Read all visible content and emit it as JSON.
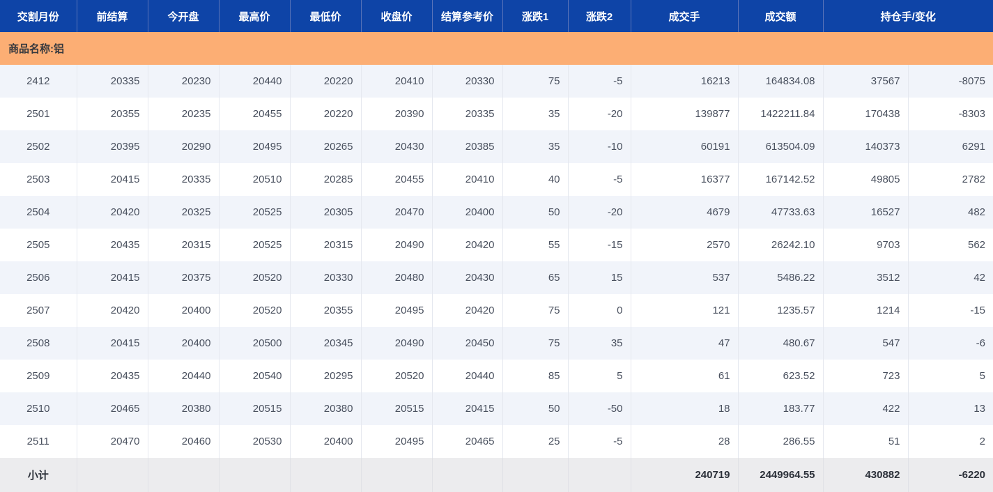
{
  "table": {
    "headers": [
      "交割月份",
      "前结算",
      "今开盘",
      "最高价",
      "最低价",
      "收盘价",
      "结算参考价",
      "涨跌1",
      "涨跌2",
      "成交手",
      "成交额",
      "持仓手/变化"
    ],
    "commodity_label": "商品名称:铝",
    "rows": [
      [
        "2412",
        "20335",
        "20230",
        "20440",
        "20220",
        "20410",
        "20330",
        "75",
        "-5",
        "16213",
        "164834.08",
        "37567",
        "-8075"
      ],
      [
        "2501",
        "20355",
        "20235",
        "20455",
        "20220",
        "20390",
        "20335",
        "35",
        "-20",
        "139877",
        "1422211.84",
        "170438",
        "-8303"
      ],
      [
        "2502",
        "20395",
        "20290",
        "20495",
        "20265",
        "20430",
        "20385",
        "35",
        "-10",
        "60191",
        "613504.09",
        "140373",
        "6291"
      ],
      [
        "2503",
        "20415",
        "20335",
        "20510",
        "20285",
        "20455",
        "20410",
        "40",
        "-5",
        "16377",
        "167142.52",
        "49805",
        "2782"
      ],
      [
        "2504",
        "20420",
        "20325",
        "20525",
        "20305",
        "20470",
        "20400",
        "50",
        "-20",
        "4679",
        "47733.63",
        "16527",
        "482"
      ],
      [
        "2505",
        "20435",
        "20315",
        "20525",
        "20315",
        "20490",
        "20420",
        "55",
        "-15",
        "2570",
        "26242.10",
        "9703",
        "562"
      ],
      [
        "2506",
        "20415",
        "20375",
        "20520",
        "20330",
        "20480",
        "20430",
        "65",
        "15",
        "537",
        "5486.22",
        "3512",
        "42"
      ],
      [
        "2507",
        "20420",
        "20400",
        "20520",
        "20355",
        "20495",
        "20420",
        "75",
        "0",
        "121",
        "1235.57",
        "1214",
        "-15"
      ],
      [
        "2508",
        "20415",
        "20400",
        "20500",
        "20345",
        "20490",
        "20450",
        "75",
        "35",
        "47",
        "480.67",
        "547",
        "-6"
      ],
      [
        "2509",
        "20435",
        "20440",
        "20540",
        "20295",
        "20520",
        "20440",
        "85",
        "5",
        "61",
        "623.52",
        "723",
        "5"
      ],
      [
        "2510",
        "20465",
        "20380",
        "20515",
        "20380",
        "20515",
        "20415",
        "50",
        "-50",
        "18",
        "183.77",
        "422",
        "13"
      ],
      [
        "2511",
        "20470",
        "20460",
        "20530",
        "20400",
        "20495",
        "20465",
        "25",
        "-5",
        "28",
        "286.55",
        "51",
        "2"
      ]
    ],
    "subtotal": {
      "label": "小计",
      "volume": "240719",
      "turnover": "2449964.55",
      "open_interest": "430882",
      "oi_change": "-6220"
    }
  },
  "colors": {
    "header_bg": "#0e44a7",
    "header_divider": "#5a74b9",
    "commodity_bg": "#fcae74",
    "row_alt_bg": "#f1f4fa",
    "subtotal_bg": "#ececee",
    "cell_divider": "#e5e8ef",
    "data_text": "#49505e"
  }
}
